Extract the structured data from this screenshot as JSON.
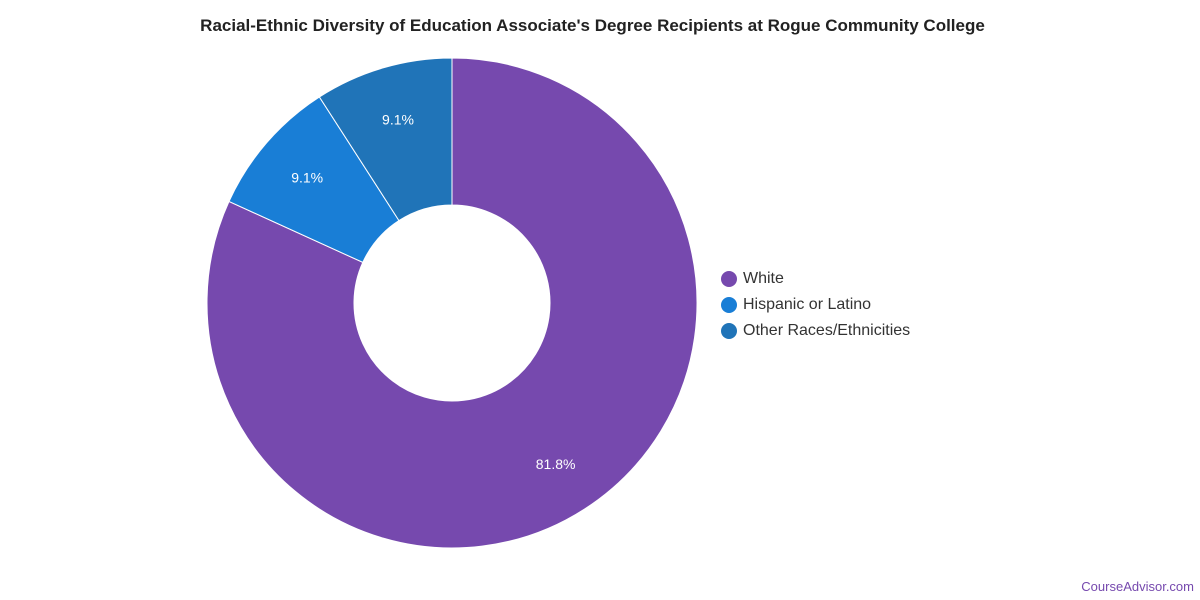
{
  "chart_data": {
    "type": "pie",
    "variant": "donut",
    "title": "Racial-Ethnic Diversity of Education Associate's Degree Recipients at Rogue Community College",
    "slices": [
      {
        "label": "White",
        "value": 81.8,
        "value_label": "81.8%",
        "color": "#7649ae"
      },
      {
        "label": "Hispanic or Latino",
        "value": 9.1,
        "value_label": "9.1%",
        "color": "#197ed6"
      },
      {
        "label": "Other Races/Ethnicities",
        "value": 9.1,
        "value_label": "9.1%",
        "color": "#2074b8"
      }
    ],
    "legend_position": "right"
  },
  "watermark": "CourseAdvisor.com"
}
